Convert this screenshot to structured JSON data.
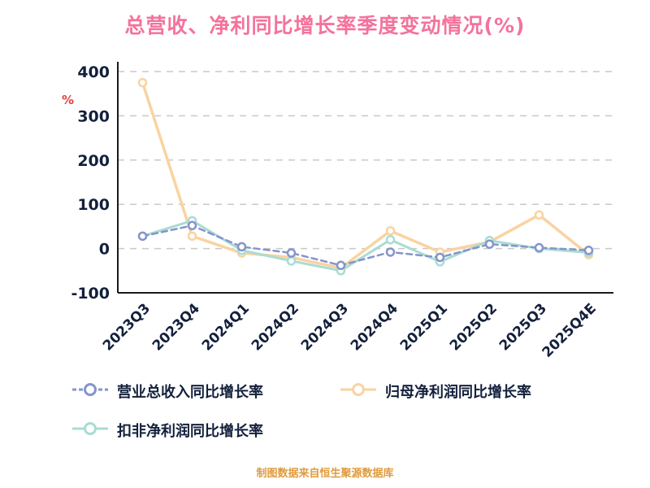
{
  "title": "总营收、净利同比增长率季度变动情况(%)",
  "unit_label": "%",
  "caption": "制图数据来自恒生聚源数据库",
  "colors": {
    "title": "#f4729c",
    "axis_text": "#13203c",
    "grid": "#c9c9c9",
    "axis_line": "#1a1a1a",
    "unit_label": "#e03e3e",
    "caption": "#e09b3d",
    "legend_text": "#13203c",
    "revenue": "#8495cc",
    "net_profit": "#f9d3a1",
    "deducted_profit": "#a9dcd3"
  },
  "chart_data": {
    "type": "line",
    "title": "总营收、净利同比增长率季度变动情况(%)",
    "categories": [
      "2023Q3",
      "2023Q4",
      "2024Q1",
      "2024Q2",
      "2024Q3",
      "2024Q4",
      "2025Q1",
      "2025Q2",
      "2025Q3",
      "2025Q4E"
    ],
    "series": [
      {
        "name": "营业总收入同比增长率",
        "color_key": "revenue",
        "dash": true,
        "values": [
          28,
          52,
          4,
          -10,
          -38,
          -8,
          -20,
          10,
          2,
          -4
        ]
      },
      {
        "name": "归母净利润同比增长率",
        "color_key": "net_profit",
        "dash": false,
        "values": [
          375,
          28,
          -10,
          -20,
          -44,
          40,
          -8,
          15,
          76,
          -14
        ]
      },
      {
        "name": "扣非净利润同比增长率",
        "color_key": "deducted_profit",
        "dash": false,
        "values": [
          28,
          63,
          -4,
          -28,
          -50,
          20,
          -30,
          18,
          0,
          -9
        ]
      }
    ],
    "ylabel": "%",
    "ylim": [
      -100,
      400
    ],
    "ytick_step": 100,
    "grid": true,
    "legend_position": "bottom"
  }
}
